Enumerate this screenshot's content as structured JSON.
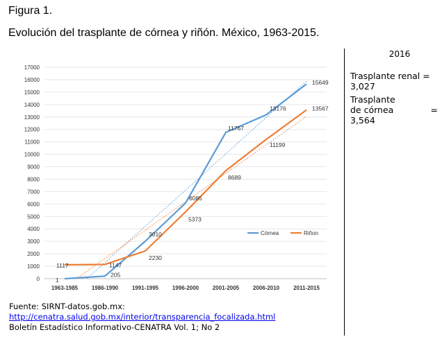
{
  "figure_label": "Figura 1.",
  "title": "Evolución del trasplante de córnea y riñón. México, 1963-2015.",
  "side_panel": {
    "year": "2016",
    "renal_label": "Trasplante renal =",
    "renal_value": "3,027",
    "cornea_label_1": "Trasplante",
    "cornea_label_2": "de córnea",
    "cornea_eq": "=",
    "cornea_value": "3,564"
  },
  "source": {
    "line1": "Fuente: SIRNT-datos.gob.mx:",
    "link": "http://cenatra.salud.gob.mx/interior/transparencia_focalizada.html",
    "line3": "Boletín Estadístico Informativo-CENATRA Vol. 1; No 2"
  },
  "colors": {
    "cornea": "#5b9bd5",
    "rinon": "#ed7d31",
    "grid": "#e6e6e6"
  },
  "chart_data": {
    "type": "line",
    "categories": [
      "1963-1985",
      "1986-1990",
      "1991-1995",
      "1996-2000",
      "2001-2005",
      "2006-2010",
      "2011-2015"
    ],
    "series": [
      {
        "name": "Córnea",
        "values": [
          1,
          205,
          3010,
          6085,
          11767,
          13176,
          15649
        ],
        "trendline": "dotted"
      },
      {
        "name": "Riñon",
        "values": [
          1117,
          1147,
          2230,
          5373,
          8689,
          11199,
          13567
        ],
        "trendline": "dotted"
      }
    ],
    "data_labels": {
      "Córnea": [
        "1",
        "205",
        "3010",
        "6085",
        "11767",
        "13176",
        "15649"
      ],
      "Riñon": [
        "1117",
        "1147",
        "2230",
        "5373",
        "8689",
        "11199",
        "13567"
      ]
    },
    "y_ticks": [
      "0",
      "1000",
      "2000",
      "3000",
      "4000",
      "5000",
      "6000",
      "7000",
      "8000",
      "9000",
      "10000",
      "11000",
      "12000",
      "13000",
      "14000",
      "15000",
      "16000",
      "17000"
    ],
    "ylim": [
      0,
      17000
    ],
    "grid": true,
    "legend_position": "inside-right"
  }
}
